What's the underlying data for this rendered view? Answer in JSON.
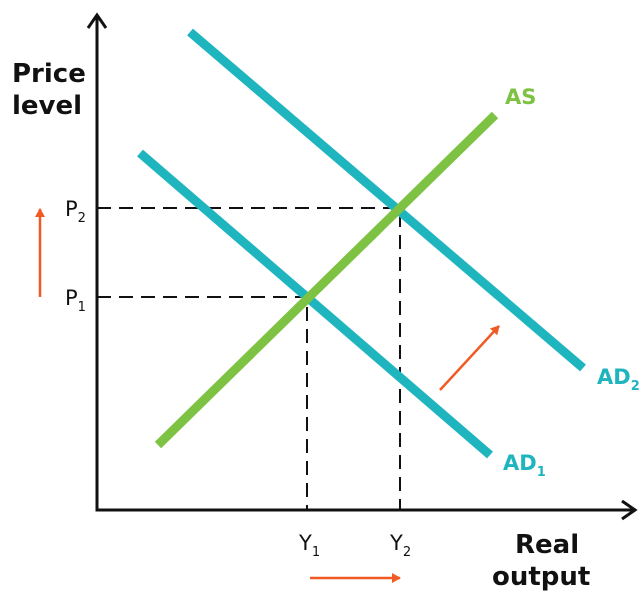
{
  "axes": {
    "y_label": [
      "Price",
      "level"
    ],
    "x_label": [
      "Real",
      "output"
    ]
  },
  "price_levels": [
    {
      "text": "P",
      "sub": "1"
    },
    {
      "text": "P",
      "sub": "2"
    }
  ],
  "outputs": [
    {
      "text": "Y",
      "sub": "1"
    },
    {
      "text": "Y",
      "sub": "2"
    }
  ],
  "curves": [
    {
      "text": "AS"
    },
    {
      "text": "AD",
      "sub": "1"
    },
    {
      "text": "AD",
      "sub": "2"
    }
  ]
}
